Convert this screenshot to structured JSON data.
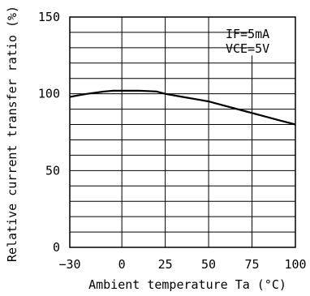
{
  "chart_data": {
    "type": "line",
    "title": "",
    "xlabel": "Ambient temperature Ta (°C)",
    "ylabel": "Relative current transfer ratio (%)",
    "xlim": [
      -30,
      100
    ],
    "ylim": [
      0,
      150
    ],
    "x_ticks": [
      "-30",
      "0",
      "25",
      "50",
      "75",
      "100"
    ],
    "y_ticks": [
      "0",
      "50",
      "100",
      "150"
    ],
    "annotations": [
      "IF=5mA",
      "VCE=5V"
    ],
    "grid": true,
    "series": [
      {
        "x": [
          -30,
          -25,
          -20,
          -10,
          -5,
          0,
          10,
          20,
          25,
          35,
          45,
          50,
          60,
          70,
          80,
          90,
          100
        ],
        "y": [
          98,
          99,
          100,
          101.5,
          102,
          102,
          102,
          101.5,
          100,
          98,
          96,
          95,
          92,
          89,
          86,
          83,
          80
        ]
      }
    ]
  }
}
